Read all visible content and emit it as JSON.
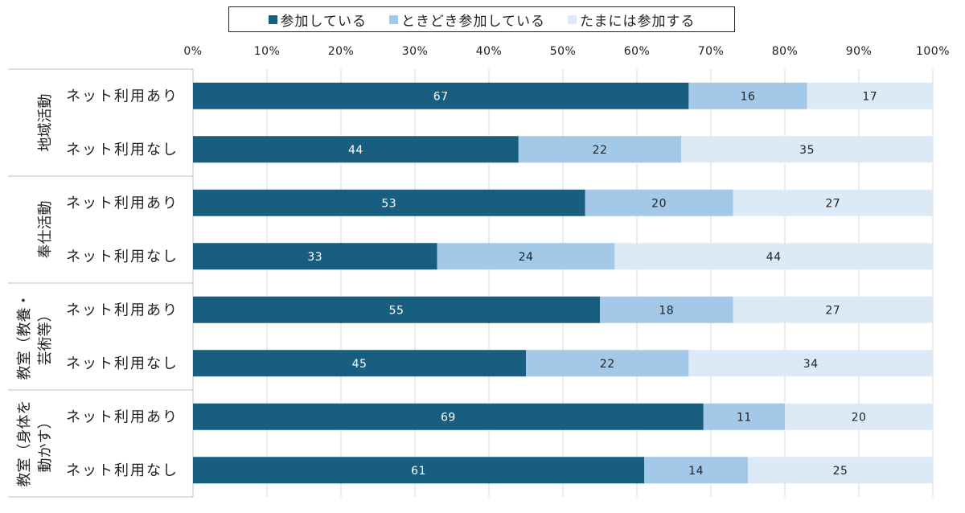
{
  "chart_data": {
    "type": "bar",
    "orientation": "horizontal",
    "stacked": true,
    "xlim": [
      0,
      100
    ],
    "x_ticks": [
      "0%",
      "10%",
      "20%",
      "30%",
      "40%",
      "50%",
      "60%",
      "70%",
      "80%",
      "90%",
      "100%"
    ],
    "legend_position": "top",
    "grid": true,
    "series": [
      {
        "name": "参加している",
        "color": "#185e80"
      },
      {
        "name": "ときどき参加している",
        "color": "#a4c8e8"
      },
      {
        "name": "たまには参加する",
        "color": "#dce9f6"
      }
    ],
    "groups": [
      {
        "label": "地域活動",
        "label_lines": [
          "地域活動"
        ],
        "rows": [
          {
            "label": "ネット利用あり",
            "values": [
              67,
              16,
              17
            ]
          },
          {
            "label": "ネット利用なし",
            "values": [
              44,
              22,
              35
            ]
          }
        ]
      },
      {
        "label": "奉仕活動",
        "label_lines": [
          "奉仕活動"
        ],
        "rows": [
          {
            "label": "ネット利用あり",
            "values": [
              53,
              20,
              27
            ]
          },
          {
            "label": "ネット利用なし",
            "values": [
              33,
              24,
              44
            ]
          }
        ]
      },
      {
        "label": "教室（教養・芸術等）",
        "label_lines": [
          "教室（教養・",
          "芸術等）"
        ],
        "rows": [
          {
            "label": "ネット利用あり",
            "values": [
              55,
              18,
              27
            ]
          },
          {
            "label": "ネット利用なし",
            "values": [
              45,
              22,
              34
            ]
          }
        ]
      },
      {
        "label": "教室（身体を動かす）",
        "label_lines": [
          "教室（身体を",
          "動かす）"
        ],
        "rows": [
          {
            "label": "ネット利用あり",
            "values": [
              69,
              11,
              20
            ]
          },
          {
            "label": "ネット利用なし",
            "values": [
              61,
              14,
              25
            ]
          }
        ]
      }
    ]
  }
}
